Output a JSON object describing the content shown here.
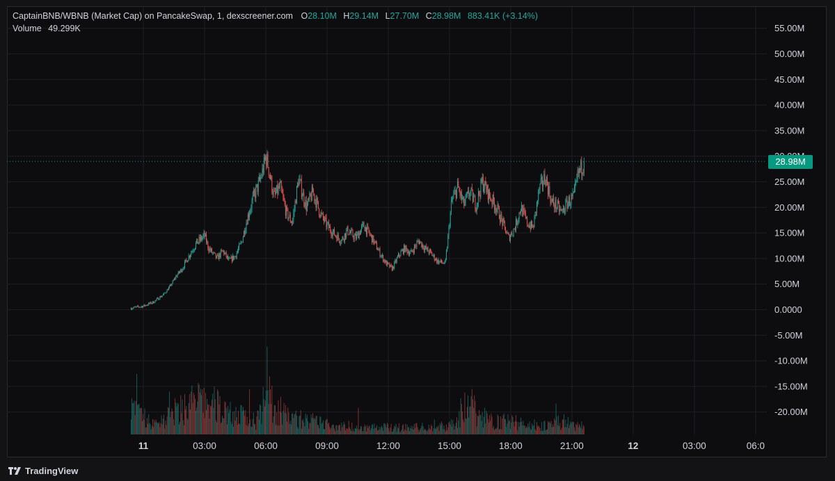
{
  "header": {
    "symbol_line": "CaptainBNB/WBNB (Market Cap) on PancakeSwap, 1, dexscreener.com",
    "o_label": "O",
    "o_value": "28.10M",
    "h_label": "H",
    "h_value": "29.14M",
    "l_label": "L",
    "l_value": "27.70M",
    "c_label": "C",
    "c_value": "28.98M",
    "change": "883.41K (+3.14%)",
    "volume_label": "Volume",
    "volume_value": "49.299K"
  },
  "price_tag": "28.98M",
  "branding": "TradingView",
  "colors": {
    "up": "#26a69a",
    "down": "#ef5350",
    "price_tag": "#089981",
    "background": "#0d0d10",
    "grid": "#1e1f24"
  },
  "chart_data": {
    "type": "candlestick",
    "y_ticks": [
      "55.00M",
      "50.00M",
      "45.00M",
      "40.00M",
      "35.00M",
      "30.00M",
      "25.00M",
      "20.00M",
      "15.00M",
      "10.00M",
      "5.00M",
      "0.0000",
      "-5.00M",
      "-10.00M",
      "-15.00M",
      "-20.00M"
    ],
    "ylim": [
      -24000000,
      57000000
    ],
    "x_ticks": [
      {
        "label": "11",
        "hour": 0,
        "day": true
      },
      {
        "label": "03:00",
        "hour": 3
      },
      {
        "label": "06:00",
        "hour": 6
      },
      {
        "label": "09:00",
        "hour": 9
      },
      {
        "label": "12:00",
        "hour": 12
      },
      {
        "label": "15:00",
        "hour": 15
      },
      {
        "label": "18:00",
        "hour": 18
      },
      {
        "label": "21:00",
        "hour": 21
      },
      {
        "label": "12",
        "hour": 24,
        "day": true
      },
      {
        "label": "03:00",
        "hour": 27
      },
      {
        "label": "06:0",
        "hour": 30
      }
    ],
    "last_value": 28980000,
    "series": [
      {
        "name": "Market Cap",
        "hours": [
          -0.6,
          0.0,
          0.5,
          1.0,
          1.3,
          1.6,
          1.9,
          2.3,
          2.6,
          3.0,
          3.2,
          3.6,
          3.9,
          4.2,
          4.5,
          4.8,
          5.1,
          5.4,
          5.7,
          5.9,
          6.0,
          6.1,
          6.4,
          6.7,
          7.0,
          7.3,
          7.6,
          8.0,
          8.3,
          8.7,
          9.0,
          9.3,
          9.7,
          10.0,
          10.4,
          10.8,
          11.2,
          11.6,
          11.9,
          12.2,
          12.5,
          12.8,
          13.1,
          13.5,
          13.8,
          14.1,
          14.4,
          14.8,
          15.1,
          15.4,
          15.7,
          16.0,
          16.3,
          16.6,
          17.0,
          17.3,
          17.6,
          17.9,
          18.2,
          18.5,
          18.8,
          19.1,
          19.4,
          19.7,
          20.0,
          20.2,
          20.5,
          20.8,
          21.1,
          21.3,
          21.5,
          21.6
        ],
        "values": [
          0.3,
          0.7,
          1.5,
          3.0,
          4.5,
          6.5,
          8.0,
          11.0,
          13.0,
          14.5,
          12.0,
          10.0,
          11.5,
          9.5,
          10.5,
          13.0,
          18.0,
          22.0,
          25.0,
          28.0,
          30.0,
          28.5,
          22.0,
          24.0,
          19.0,
          17.0,
          25.5,
          20.0,
          23.0,
          18.5,
          16.5,
          15.0,
          13.5,
          15.5,
          14.0,
          16.5,
          14.0,
          11.0,
          9.0,
          8.0,
          10.5,
          12.0,
          11.0,
          13.5,
          12.0,
          11.0,
          9.5,
          9.0,
          21.0,
          24.0,
          20.5,
          23.0,
          20.5,
          25.0,
          22.0,
          20.0,
          17.0,
          14.0,
          16.0,
          20.0,
          17.0,
          16.0,
          23.5,
          26.0,
          21.0,
          20.5,
          19.0,
          21.0,
          22.0,
          26.5,
          28.1,
          28.98
        ]
      },
      {
        "name": "Volume",
        "hours": [
          -0.6,
          0.5,
          1.5,
          2.5,
          3.5,
          4.5,
          5.5,
          5.9,
          6.0,
          6.2,
          7.0,
          8.0,
          9.0,
          10.0,
          11.0,
          12.0,
          13.0,
          14.0,
          15.0,
          15.8,
          16.0,
          16.5,
          17.0,
          18.0,
          19.0,
          20.0,
          20.6,
          21.0,
          21.5
        ],
        "values": [
          1.8,
          0.7,
          1.5,
          2.4,
          2.1,
          1.4,
          1.0,
          2.7,
          6.1,
          2.2,
          1.3,
          1.0,
          0.7,
          0.6,
          0.5,
          0.5,
          0.5,
          0.5,
          0.6,
          2.0,
          2.4,
          1.3,
          1.0,
          0.9,
          0.7,
          0.6,
          1.0,
          0.6,
          0.6
        ]
      }
    ]
  }
}
